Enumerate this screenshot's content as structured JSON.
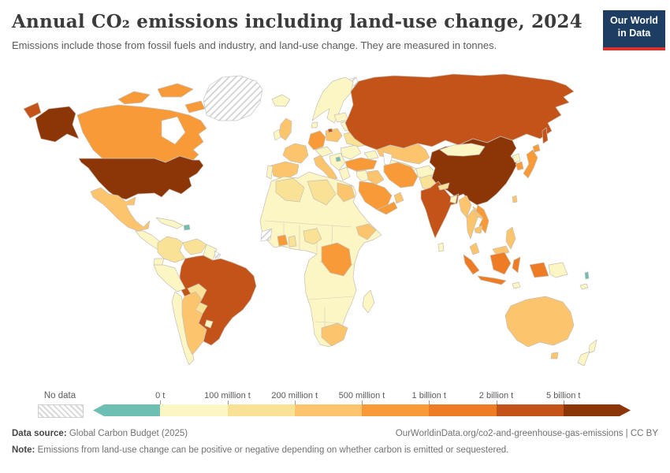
{
  "header": {
    "title": "Annual CO₂ emissions including land-use change, 2024",
    "subtitle": "Emissions include those from fossil fuels and industry, and land-use change. They are measured in tonnes.",
    "logo": {
      "line1": "Our World",
      "line2": "in Data",
      "bg_color": "#1d3d63",
      "accent_color": "#d7332e"
    }
  },
  "legend": {
    "no_data_label": "No data",
    "tick_labels": [
      "0 t",
      "100 million t",
      "200 million t",
      "500 million t",
      "1 billion t",
      "2 billion t",
      "5 billion t"
    ],
    "bin_colors": [
      "#6EBFB3",
      "#FCF5C4",
      "#F9E195",
      "#FBC46D",
      "#F89A38",
      "#EE7C24",
      "#C4531A",
      "#8C3608"
    ]
  },
  "map": {
    "border_color": "#c6c0b6",
    "ocean_color": "#ffffff",
    "country_fills": {
      "greenland": "no-data",
      "svalbard": "no-data",
      "western_sahara": "no-data",
      "french_guiana": "no-data",
      "usa": "#8C3608",
      "china": "#8C3608",
      "russia": "#C4531A",
      "india": "#C4531A",
      "brazil": "#C4531A",
      "indonesia": "#EE7C24",
      "canada": "#F89A38",
      "germany": "#F89A38",
      "turkey": "#F89A38",
      "iran": "#F89A38",
      "saudi_arabia": "#F89A38",
      "yemen": "#F89A38",
      "japan": "#F89A38",
      "south_korea": "#F89A38",
      "vietnam": "#F89A38",
      "dr_congo": "#F89A38",
      "cote_divoire": "#F89A38",
      "mexico": "#FBC46D",
      "argentina": "#FBC46D",
      "uk": "#FBC46D",
      "france": "#FBC46D",
      "spain": "#FBC46D",
      "italy": "#FBC46D",
      "poland": "#FBC46D",
      "australia": "#FBC46D",
      "south_africa": "#FBC46D",
      "ethiopia": "#FBC46D",
      "egypt": "#FBC46D",
      "kazakhstan": "#FBC46D",
      "iraq": "#FBC46D",
      "oman": "#FBC46D",
      "myanmar": "#FBC46D",
      "thailand": "#FBC46D",
      "laos": "#FBC46D",
      "cambodia": "#FBC46D",
      "malaysia": "#FBC46D",
      "philippines": "#FBC46D",
      "taiwan": "#FBC46D",
      "colombia": "#F9E195",
      "venezuela": "#F9E195",
      "ukraine": "#F9E195",
      "bolivia": "#F9E195",
      "paraguay": "#F9E195",
      "nigeria": "#F9E195",
      "ghana": "#F9E195",
      "algeria": "#F9E195",
      "libya": "#F9E195",
      "pakistan": "#F9E195",
      "nepal": "#F9E195",
      "africa_base": "#FCF5C4",
      "peru": "#FCF5C4",
      "chile": "#FCF5C4",
      "ecuador": "#FCF5C4",
      "uruguay": "#FCF5C4",
      "guyana": "#FCF5C4",
      "cuba": "#FCF5C4",
      "central_america": "#FCF5C4",
      "iceland": "#FCF5C4",
      "scandinavia": "#FCF5C4",
      "denmark": "#FCF5C4",
      "ireland": "#FCF5C4",
      "portugal": "#FCF5C4",
      "baltics": "#FCF5C4",
      "belarus": "#FCF5C4",
      "czech_austria": "#FCF5C4",
      "balkans": "#FCF5C4",
      "greece": "#FCF5C4",
      "romania_bulgaria": "#FCF5C4",
      "caucasus": "#FCF5C4",
      "central_asia": "#FCF5C4",
      "afghanistan": "#FCF5C4",
      "mongolia": "#FCF5C4",
      "north_korea": "#FCF5C4",
      "bangladesh": "#FCF5C4",
      "sri_lanka": "#FCF5C4",
      "madagascar": "#FCF5C4",
      "png": "#FCF5C4",
      "new_zealand": "#FCF5C4",
      "new_caledonia": "#FCF5C4",
      "timor": "#FCF5C4",
      "levant": "#FCF5C4",
      "haiti": "#6EBFB3",
      "montenegro": "#6EBFB3",
      "vanuatu": "#6EBFB3"
    }
  },
  "footer": {
    "datasource_label": "Data source:",
    "datasource_value": " Global Carbon Budget (2025)",
    "url_text": "OurWorldinData.org/co2-and-greenhouse-gas-emissions | CC BY",
    "note_label": "Note:",
    "note_value": " Emissions from land-use change can be positive or negative depending on whether carbon is emitted or sequestered."
  },
  "chart_data": {
    "type": "choropleth_map",
    "title": "Annual CO₂ emissions including land-use change, 2024",
    "year": 2024,
    "unit": "tonnes of CO₂",
    "legend_position": "bottom",
    "bins": [
      {
        "range": "< 0 t",
        "color": "#6EBFB3"
      },
      {
        "range": "0 – 100 million t",
        "color": "#FCF5C4"
      },
      {
        "range": "100 – 200 million t",
        "color": "#F9E195"
      },
      {
        "range": "200 – 500 million t",
        "color": "#FBC46D"
      },
      {
        "range": "500 million – 1 billion t",
        "color": "#F89A38"
      },
      {
        "range": "1 – 2 billion t",
        "color": "#EE7C24"
      },
      {
        "range": "2 – 5 billion t",
        "color": "#C4531A"
      },
      {
        "range": "> 5 billion t",
        "color": "#8C3608"
      },
      {
        "range": "No data",
        "color": "hatched"
      }
    ],
    "countries_by_bin": {
      "> 5 billion t": [
        "China",
        "United States"
      ],
      "2 – 5 billion t": [
        "Russia",
        "India",
        "Brazil"
      ],
      "1 – 2 billion t": [
        "Indonesia"
      ],
      "500 million – 1 billion t": [
        "Canada",
        "Germany",
        "Turkey",
        "Iran",
        "Saudi Arabia",
        "Japan",
        "South Korea",
        "Vietnam",
        "Democratic Republic of Congo",
        "Cote d'Ivoire",
        "Yemen"
      ],
      "200 – 500 million t": [
        "Mexico",
        "Argentina",
        "United Kingdom",
        "France",
        "Spain",
        "Italy",
        "Poland",
        "Australia",
        "South Africa",
        "Ethiopia",
        "Egypt",
        "Kazakhstan",
        "Iraq",
        "Oman",
        "Myanmar",
        "Thailand",
        "Malaysia",
        "Philippines",
        "Taiwan"
      ],
      "100 – 200 million t": [
        "Colombia",
        "Venezuela",
        "Ukraine",
        "Bolivia",
        "Paraguay",
        "Nigeria",
        "Ghana",
        "Algeria",
        "Libya",
        "Pakistan"
      ],
      "0 – 100 million t": [
        "Peru",
        "Chile",
        "Ecuador",
        "Uruguay",
        "Cuba",
        "Iceland",
        "Norway",
        "Sweden",
        "Finland",
        "Ireland",
        "Portugal",
        "Mongolia",
        "North Korea",
        "Bangladesh",
        "Sri Lanka",
        "Madagascar",
        "Papua New Guinea",
        "New Zealand",
        "most of Africa"
      ],
      "< 0 t": [
        "Haiti",
        "Montenegro",
        "Vanuatu"
      ],
      "No data": [
        "Greenland",
        "Western Sahara",
        "French Guiana",
        "Svalbard"
      ]
    }
  }
}
